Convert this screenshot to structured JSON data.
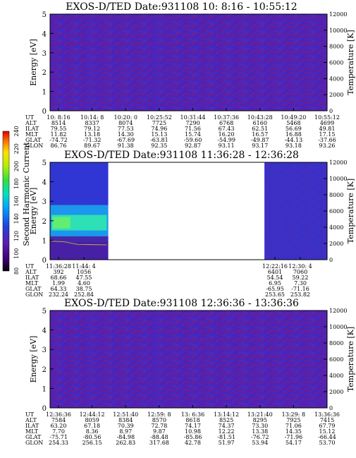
{
  "chart_data": [
    {
      "type": "heatmap",
      "title": "EXOS-D/TED   Date:931108  10: 8:16 - 10:55:12",
      "ylabel": "Energy [eV]",
      "ylabel_right": "Temperature [K]",
      "ylim": [
        0,
        5
      ],
      "yticks": [
        "0",
        "1",
        "2",
        "3",
        "4",
        "5"
      ],
      "ylim_right": [
        0,
        12000
      ],
      "yticks_right": [
        "0",
        "2000",
        "4000",
        "6000",
        "8000",
        "10000",
        "12000"
      ],
      "data_spans": [
        [
          0,
          1
        ]
      ],
      "structure": "uniform-low",
      "table": {
        "row_labels": [
          "UT",
          "ALT",
          "ILAT",
          "MLT",
          "GLAT",
          "GLON"
        ],
        "columns": [
          [
            "10: 8:16",
            "8514",
            "79.55",
            "11.82",
            "-74.72",
            "86.76"
          ],
          [
            "10:14: 8",
            "8337",
            "79.12",
            "13.18",
            "-71.32",
            "89.67"
          ],
          [
            "10:20: 0",
            "8074",
            "77.53",
            "14.30",
            "-67.69",
            "91.38"
          ],
          [
            "10:25:52",
            "7725",
            "74.96",
            "15.13",
            "-63.81",
            "92.35"
          ],
          [
            "10:31:44",
            "7290",
            "71.56",
            "15.74",
            "-59.60",
            "92.87"
          ],
          [
            "10:37:36",
            "6768",
            "67.43",
            "16.20",
            "-54.99",
            "93.11"
          ],
          [
            "10:43:28",
            "6160",
            "62.51",
            "16.57",
            "-49.87",
            "93.17"
          ],
          [
            "10:49:20",
            "5468",
            "56.69",
            "16.88",
            "-44.13",
            "93.18"
          ],
          [
            "10:55:12",
            "4699",
            "49.81",
            "17.15",
            "-37.66",
            "93.26"
          ]
        ]
      }
    },
    {
      "type": "heatmap",
      "title": "EXOS-D/TED   Date:931108  11:36:28 - 12:36:28",
      "ylabel": "Energy [eV]",
      "ylabel_right": "Temperature [K]",
      "ylim": [
        0,
        5
      ],
      "yticks": [
        "0",
        "1",
        "2",
        "3",
        "4",
        "5"
      ],
      "ylim_right": [
        0,
        12000
      ],
      "yticks_right": [
        "0",
        "2000",
        "4000",
        "6000",
        "8000",
        "10000",
        "12000"
      ],
      "data_spans": [
        [
          0,
          0.21
        ],
        [
          0.774,
          1
        ]
      ],
      "structure": "band",
      "band_energy": [
        1.5,
        2.3
      ],
      "colorbar": {
        "label": "Second Harmonic Current",
        "range": [
          80,
          240
        ],
        "ticks": [
          "80",
          "100",
          "120",
          "140",
          "160",
          "180",
          "200",
          "220",
          "240"
        ]
      },
      "table": {
        "row_labels": [
          "UT",
          "ALT",
          "ILAT",
          "MLT",
          "GLAT",
          "GLON"
        ],
        "columns": [
          [
            "11:36:28",
            "392",
            "68.66",
            "1.99",
            "64.33",
            "232.24"
          ],
          [
            "11:44: 4",
            "1056",
            "47.55",
            "4.60",
            "38.75",
            "252.84"
          ],
          [
            "12:22:16",
            "6401",
            "54.54",
            "6.95",
            "-65.95",
            "253.65"
          ],
          [
            "12:30: 4",
            "7060",
            "59.22",
            "7.30",
            "-71.16",
            "253.82"
          ]
        ]
      }
    },
    {
      "type": "heatmap",
      "title": "EXOS-D/TED   Date:931108  12:36:36 - 13:36:36",
      "ylabel": "Energy [eV]",
      "ylabel_right": "Temperature [K]",
      "ylim": [
        0,
        5
      ],
      "yticks": [
        "0",
        "1",
        "2",
        "3",
        "4",
        "5"
      ],
      "ylim_right": [
        0,
        12000
      ],
      "yticks_right": [
        "0",
        "2000",
        "4000",
        "6000",
        "8000",
        "10000",
        "12000"
      ],
      "data_spans": [
        [
          0,
          1
        ]
      ],
      "structure": "uniform-low",
      "table": {
        "row_labels": [
          "UT",
          "ALT",
          "ILAT",
          "MLT",
          "GLAT",
          "GLON"
        ],
        "columns": [
          [
            "12:36:36",
            "7584",
            "63.20",
            "7.70",
            "-75.71",
            "254.33"
          ],
          [
            "12:44:12",
            "8059",
            "67.18",
            "8.36",
            "-80.56",
            "256.15"
          ],
          [
            "12:51:40",
            "8384",
            "70.39",
            "8.97",
            "-84.98",
            "262.83"
          ],
          [
            "12:59: 8",
            "8570",
            "72.78",
            "9.87",
            "-88.48",
            "317.68"
          ],
          [
            "13: 6:36",
            "8618",
            "74.17",
            "10.98",
            "-85.86",
            "42.78"
          ],
          [
            "13:14:12",
            "8525",
            "74.37",
            "12.22",
            "-81.51",
            "51.97"
          ],
          [
            "13:21:40",
            "8295",
            "73.30",
            "13.38",
            "-76.72",
            "53.94"
          ],
          [
            "13:29: 8",
            "7925",
            "71.06",
            "14.35",
            "-71.96",
            "54.17"
          ],
          [
            "13:36:36",
            "7415",
            "67.79",
            "15.12",
            "-66.44",
            "53.70"
          ]
        ]
      }
    }
  ]
}
